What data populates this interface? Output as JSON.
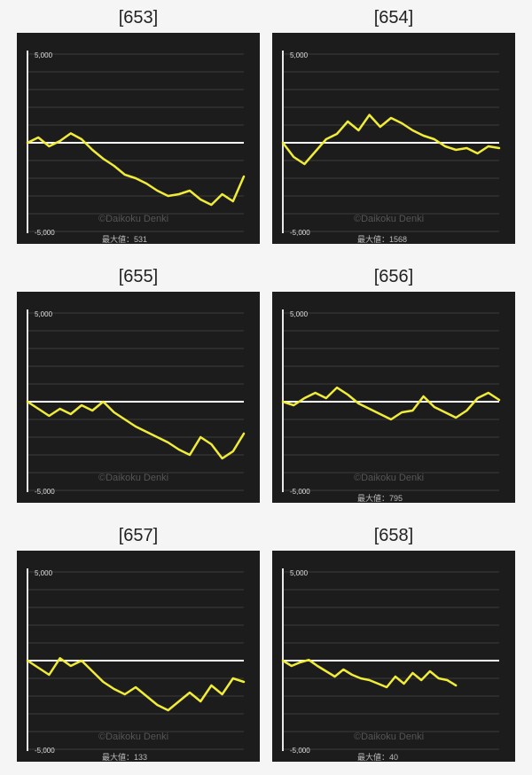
{
  "colors": {
    "background": "#f5f5f5",
    "panel": "#1c1c1c",
    "line": "#f0ec38",
    "zero": "#ffffff",
    "grid": "#3c3c3c"
  },
  "watermark": "©Daikoku Denki",
  "ymax_label": "5,000",
  "ymin_label": "-5,000",
  "chart_data": [
    {
      "type": "line",
      "title": "[653]",
      "ylim": [
        -5000,
        5000
      ],
      "maxval_label": "最大値：531",
      "x": [
        0,
        5,
        10,
        15,
        20,
        25,
        30,
        35,
        40,
        45,
        50,
        55,
        60,
        65,
        70,
        75,
        80,
        85,
        90,
        95,
        100
      ],
      "y": [
        0,
        300,
        -200,
        100,
        531,
        200,
        -400,
        -900,
        -1300,
        -1800,
        -2000,
        -2300,
        -2700,
        -3000,
        -2900,
        -2700,
        -3200,
        -3500,
        -2900,
        -3300,
        -1900
      ]
    },
    {
      "type": "line",
      "title": "[654]",
      "ylim": [
        -5000,
        5000
      ],
      "maxval_label": "最大値：1568",
      "x": [
        0,
        5,
        10,
        15,
        20,
        25,
        30,
        35,
        40,
        45,
        50,
        55,
        60,
        65,
        70,
        75,
        80,
        85,
        90,
        95,
        100
      ],
      "y": [
        0,
        -800,
        -1200,
        -500,
        200,
        500,
        1200,
        700,
        1568,
        900,
        1400,
        1100,
        700,
        400,
        200,
        -200,
        -400,
        -300,
        -600,
        -200,
        -300
      ]
    },
    {
      "type": "line",
      "title": "[655]",
      "ylim": [
        -5000,
        5000
      ],
      "maxval_label": "",
      "x": [
        0,
        5,
        10,
        15,
        20,
        25,
        30,
        35,
        40,
        45,
        50,
        55,
        60,
        65,
        70,
        75,
        80,
        85,
        90,
        95,
        100
      ],
      "y": [
        0,
        -400,
        -800,
        -400,
        -700,
        -200,
        -500,
        0,
        -600,
        -1000,
        -1400,
        -1700,
        -2000,
        -2300,
        -2700,
        -3000,
        -2000,
        -2400,
        -3200,
        -2800,
        -1800
      ]
    },
    {
      "type": "line",
      "title": "[656]",
      "ylim": [
        -5000,
        5000
      ],
      "maxval_label": "最大値：795",
      "x": [
        0,
        5,
        10,
        15,
        20,
        25,
        30,
        35,
        40,
        45,
        50,
        55,
        60,
        65,
        70,
        75,
        80,
        85,
        90,
        95,
        100
      ],
      "y": [
        0,
        -200,
        200,
        500,
        200,
        795,
        400,
        -100,
        -400,
        -700,
        -1000,
        -600,
        -500,
        300,
        -300,
        -600,
        -900,
        -500,
        200,
        500,
        100
      ]
    },
    {
      "type": "line",
      "title": "[657]",
      "ylim": [
        -5000,
        5000
      ],
      "maxval_label": "最大値：133",
      "x": [
        0,
        5,
        10,
        15,
        20,
        25,
        30,
        35,
        40,
        45,
        50,
        55,
        60,
        65,
        70,
        75,
        80,
        85,
        90,
        95,
        100
      ],
      "y": [
        0,
        -400,
        -800,
        133,
        -300,
        0,
        -600,
        -1200,
        -1600,
        -1900,
        -1500,
        -2000,
        -2500,
        -2800,
        -2300,
        -1800,
        -2300,
        -1400,
        -1900,
        -1000,
        -1200
      ]
    },
    {
      "type": "line",
      "title": "[658]",
      "ylim": [
        -5000,
        5000
      ],
      "maxval_label": "最大値：40",
      "x": [
        0,
        4,
        8,
        12,
        16,
        20,
        24,
        28,
        32,
        36,
        40,
        44,
        48,
        52,
        56,
        60,
        64,
        68,
        72,
        76,
        80
      ],
      "y": [
        0,
        -300,
        -100,
        40,
        -300,
        -600,
        -900,
        -500,
        -800,
        -1000,
        -1100,
        -1300,
        -1500,
        -900,
        -1300,
        -700,
        -1100,
        -600,
        -1000,
        -1100,
        -1400
      ]
    }
  ]
}
